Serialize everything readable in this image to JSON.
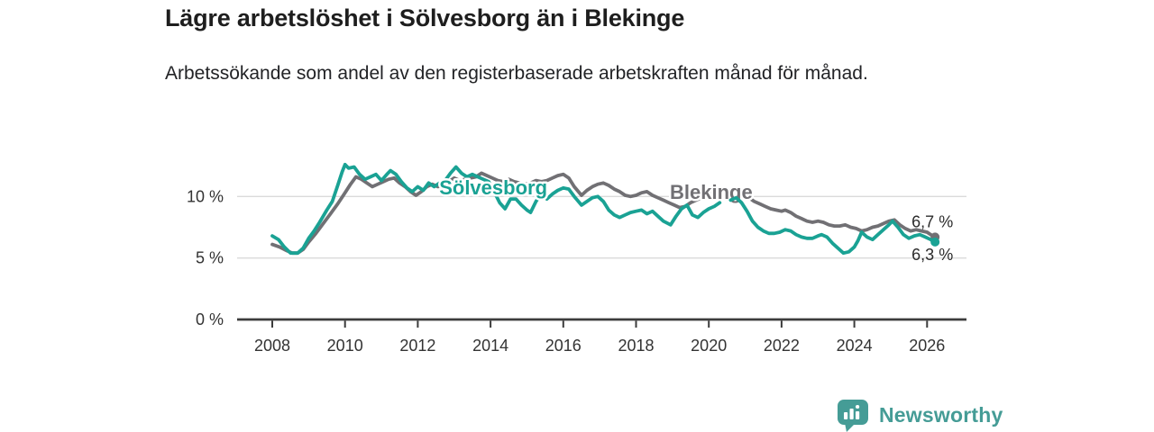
{
  "title": "Lägre arbetslöshet i Sölvesborg än i Blekinge",
  "subtitle": "Arbetssökande som andel av den registerbaserade arbetskraften månad för månad.",
  "branding": {
    "logo_text": "Newsworthy",
    "logo_color": "#459c96",
    "logo_icon": "bar-chart-bubble-icon"
  },
  "colors": {
    "solvesborg_teal": "#1aa294",
    "blekinge_gray": "#717074",
    "gridline": "#dadada",
    "axis": "#3c3c3c",
    "tick_text": "#333333",
    "value_label_text": "#2b2b2b",
    "background": "#ffffff"
  },
  "chart_data": {
    "type": "line",
    "title": "Lägre arbetslöshet i Sölvesborg än i Blekinge",
    "subtitle": "Arbetssökande som andel av den registerbaserade arbetskraften månad för månad.",
    "unit": "%",
    "x_axis": {
      "ticks": [
        2008,
        2010,
        2012,
        2014,
        2016,
        2018,
        2020,
        2022,
        2024,
        2026
      ],
      "range": [
        2007.0,
        2027.1
      ],
      "grid": false
    },
    "y_axis": {
      "ticks": [
        {
          "value": 0,
          "label": "0 %"
        },
        {
          "value": 5,
          "label": "5 %"
        },
        {
          "value": 10,
          "label": "10 %"
        }
      ],
      "range": [
        0,
        13.8
      ],
      "gridlines": [
        5,
        10
      ]
    },
    "data_break": {
      "from": 2020.38,
      "to": 2020.58
    },
    "legend_position": "inline-labels",
    "series": [
      {
        "name": "Blekinge",
        "color": "#717074",
        "end_value": 6.7,
        "end_label": "6,7 %",
        "label_pos": {
          "x": 2018.93,
          "y": 10.32
        },
        "segments": [
          [
            [
              2008.0,
              6.1
            ],
            [
              2008.2,
              5.9
            ],
            [
              2008.4,
              5.6
            ],
            [
              2008.55,
              5.4
            ],
            [
              2008.7,
              5.4
            ],
            [
              2008.85,
              5.7
            ],
            [
              2009.0,
              6.3
            ],
            [
              2009.2,
              7.0
            ],
            [
              2009.4,
              7.8
            ],
            [
              2009.6,
              8.6
            ],
            [
              2009.8,
              9.4
            ],
            [
              2010.0,
              10.3
            ],
            [
              2010.15,
              11.0
            ],
            [
              2010.3,
              11.6
            ],
            [
              2010.45,
              11.4
            ],
            [
              2010.6,
              11.1
            ],
            [
              2010.75,
              10.8
            ],
            [
              2010.9,
              11.0
            ],
            [
              2011.05,
              11.2
            ],
            [
              2011.2,
              11.4
            ],
            [
              2011.35,
              11.5
            ],
            [
              2011.5,
              11.1
            ],
            [
              2011.65,
              10.8
            ],
            [
              2011.8,
              10.4
            ],
            [
              2011.95,
              10.1
            ],
            [
              2012.1,
              10.4
            ],
            [
              2012.25,
              10.8
            ],
            [
              2012.4,
              11.0
            ],
            [
              2012.55,
              10.8
            ],
            [
              2012.7,
              10.9
            ],
            [
              2012.85,
              11.2
            ],
            [
              2013.0,
              11.5
            ],
            [
              2013.15,
              11.3
            ],
            [
              2013.3,
              11.4
            ],
            [
              2013.45,
              11.5
            ],
            [
              2013.6,
              11.6
            ],
            [
              2013.75,
              11.9
            ],
            [
              2013.9,
              11.7
            ],
            [
              2014.05,
              11.5
            ],
            [
              2014.2,
              11.3
            ],
            [
              2014.35,
              11.2
            ],
            [
              2014.5,
              11.4
            ],
            [
              2014.65,
              11.2
            ],
            [
              2014.8,
              11.1
            ],
            [
              2014.95,
              11.0
            ],
            [
              2015.1,
              11.1
            ],
            [
              2015.25,
              11.3
            ],
            [
              2015.4,
              11.2
            ],
            [
              2015.55,
              11.3
            ],
            [
              2015.7,
              11.5
            ],
            [
              2015.85,
              11.7
            ],
            [
              2016.0,
              11.8
            ],
            [
              2016.15,
              11.5
            ],
            [
              2016.3,
              10.8
            ],
            [
              2016.5,
              10.1
            ],
            [
              2016.65,
              10.5
            ],
            [
              2016.8,
              10.8
            ],
            [
              2016.95,
              11.0
            ],
            [
              2017.1,
              11.1
            ],
            [
              2017.25,
              10.9
            ],
            [
              2017.4,
              10.6
            ],
            [
              2017.55,
              10.4
            ],
            [
              2017.7,
              10.1
            ],
            [
              2017.85,
              10.0
            ],
            [
              2018.0,
              10.1
            ],
            [
              2018.15,
              10.3
            ],
            [
              2018.3,
              10.4
            ],
            [
              2018.45,
              10.1
            ],
            [
              2018.6,
              9.9
            ],
            [
              2018.75,
              9.7
            ],
            [
              2018.9,
              9.5
            ],
            [
              2019.05,
              9.3
            ],
            [
              2019.2,
              9.1
            ],
            [
              2019.35,
              9.2
            ],
            [
              2019.5,
              9.5
            ],
            [
              2019.65,
              9.7
            ],
            [
              2019.8,
              9.9
            ],
            [
              2019.95,
              10.1
            ],
            [
              2020.1,
              10.4
            ],
            [
              2020.3,
              10.6
            ]
          ],
          [
            [
              2020.6,
              10.5
            ],
            [
              2020.8,
              10.3
            ],
            [
              2020.95,
              10.1
            ],
            [
              2021.1,
              9.9
            ],
            [
              2021.25,
              9.6
            ],
            [
              2021.4,
              9.4
            ],
            [
              2021.55,
              9.2
            ],
            [
              2021.7,
              9.0
            ],
            [
              2021.85,
              8.9
            ],
            [
              2022.0,
              8.8
            ],
            [
              2022.1,
              8.9
            ],
            [
              2022.25,
              8.7
            ],
            [
              2022.4,
              8.4
            ],
            [
              2022.55,
              8.2
            ],
            [
              2022.7,
              8.0
            ],
            [
              2022.85,
              7.9
            ],
            [
              2023.0,
              8.0
            ],
            [
              2023.15,
              7.9
            ],
            [
              2023.3,
              7.7
            ],
            [
              2023.45,
              7.6
            ],
            [
              2023.6,
              7.6
            ],
            [
              2023.75,
              7.7
            ],
            [
              2023.9,
              7.5
            ],
            [
              2024.05,
              7.4
            ],
            [
              2024.2,
              7.2
            ],
            [
              2024.35,
              7.3
            ],
            [
              2024.5,
              7.5
            ],
            [
              2024.65,
              7.6
            ],
            [
              2024.8,
              7.8
            ],
            [
              2024.95,
              8.0
            ],
            [
              2025.1,
              8.1
            ],
            [
              2025.25,
              7.7
            ],
            [
              2025.4,
              7.4
            ],
            [
              2025.55,
              7.2
            ],
            [
              2025.7,
              7.3
            ],
            [
              2025.85,
              7.2
            ],
            [
              2026.0,
              7.1
            ],
            [
              2026.1,
              6.9
            ],
            [
              2026.22,
              6.7
            ]
          ]
        ]
      },
      {
        "name": "Sölvesborg",
        "color": "#1aa294",
        "end_value": 6.3,
        "end_label": "6,3 %",
        "label_pos": {
          "x": 2012.59,
          "y": 10.68
        },
        "segments": [
          [
            [
              2008.0,
              6.8
            ],
            [
              2008.17,
              6.5
            ],
            [
              2008.33,
              5.9
            ],
            [
              2008.5,
              5.4
            ],
            [
              2008.7,
              5.4
            ],
            [
              2008.85,
              5.8
            ],
            [
              2009.0,
              6.6
            ],
            [
              2009.15,
              7.2
            ],
            [
              2009.3,
              7.9
            ],
            [
              2009.5,
              8.9
            ],
            [
              2009.65,
              9.6
            ],
            [
              2009.8,
              10.9
            ],
            [
              2009.92,
              12.0
            ],
            [
              2010.0,
              12.6
            ],
            [
              2010.1,
              12.3
            ],
            [
              2010.25,
              12.4
            ],
            [
              2010.4,
              11.8
            ],
            [
              2010.55,
              11.4
            ],
            [
              2010.7,
              11.6
            ],
            [
              2010.85,
              11.8
            ],
            [
              2011.0,
              11.3
            ],
            [
              2011.15,
              11.8
            ],
            [
              2011.25,
              12.1
            ],
            [
              2011.4,
              11.8
            ],
            [
              2011.55,
              11.2
            ],
            [
              2011.7,
              10.7
            ],
            [
              2011.85,
              10.4
            ],
            [
              2012.0,
              10.8
            ],
            [
              2012.15,
              10.5
            ],
            [
              2012.3,
              11.1
            ],
            [
              2012.45,
              10.8
            ],
            [
              2012.6,
              11.1
            ],
            [
              2012.75,
              11.3
            ],
            [
              2012.9,
              11.9
            ],
            [
              2013.05,
              12.4
            ],
            [
              2013.2,
              11.9
            ],
            [
              2013.35,
              11.6
            ],
            [
              2013.5,
              11.8
            ],
            [
              2013.65,
              11.6
            ],
            [
              2013.8,
              11.4
            ],
            [
              2013.95,
              11.2
            ],
            [
              2014.1,
              10.4
            ],
            [
              2014.25,
              9.5
            ],
            [
              2014.4,
              9.0
            ],
            [
              2014.55,
              9.8
            ],
            [
              2014.7,
              9.8
            ],
            [
              2014.85,
              9.3
            ],
            [
              2015.0,
              8.9
            ],
            [
              2015.1,
              8.7
            ],
            [
              2015.25,
              9.6
            ],
            [
              2015.4,
              10.2
            ],
            [
              2015.55,
              9.8
            ],
            [
              2015.7,
              10.2
            ],
            [
              2015.85,
              10.5
            ],
            [
              2016.0,
              10.7
            ],
            [
              2016.15,
              10.6
            ],
            [
              2016.3,
              10.0
            ],
            [
              2016.5,
              9.3
            ],
            [
              2016.65,
              9.6
            ],
            [
              2016.8,
              9.9
            ],
            [
              2016.95,
              10.0
            ],
            [
              2017.1,
              9.6
            ],
            [
              2017.25,
              8.9
            ],
            [
              2017.4,
              8.5
            ],
            [
              2017.55,
              8.3
            ],
            [
              2017.7,
              8.5
            ],
            [
              2017.85,
              8.7
            ],
            [
              2018.0,
              8.8
            ],
            [
              2018.15,
              8.9
            ],
            [
              2018.3,
              8.6
            ],
            [
              2018.45,
              8.8
            ],
            [
              2018.6,
              8.4
            ],
            [
              2018.75,
              8.0
            ],
            [
              2018.95,
              7.7
            ],
            [
              2019.1,
              8.4
            ],
            [
              2019.25,
              9.0
            ],
            [
              2019.4,
              9.3
            ],
            [
              2019.55,
              8.5
            ],
            [
              2019.7,
              8.3
            ],
            [
              2019.85,
              8.7
            ],
            [
              2020.0,
              9.0
            ],
            [
              2020.15,
              9.2
            ],
            [
              2020.3,
              9.5
            ]
          ],
          [
            [
              2020.6,
              9.7
            ],
            [
              2020.75,
              9.9
            ],
            [
              2020.9,
              9.5
            ],
            [
              2021.05,
              8.8
            ],
            [
              2021.2,
              8.0
            ],
            [
              2021.35,
              7.5
            ],
            [
              2021.5,
              7.2
            ],
            [
              2021.65,
              7.0
            ],
            [
              2021.8,
              7.0
            ],
            [
              2021.95,
              7.1
            ],
            [
              2022.1,
              7.3
            ],
            [
              2022.25,
              7.2
            ],
            [
              2022.4,
              6.9
            ],
            [
              2022.55,
              6.7
            ],
            [
              2022.7,
              6.6
            ],
            [
              2022.85,
              6.6
            ],
            [
              2023.0,
              6.8
            ],
            [
              2023.1,
              6.9
            ],
            [
              2023.25,
              6.7
            ],
            [
              2023.4,
              6.2
            ],
            [
              2023.55,
              5.8
            ],
            [
              2023.7,
              5.4
            ],
            [
              2023.85,
              5.5
            ],
            [
              2024.0,
              5.9
            ],
            [
              2024.1,
              6.4
            ],
            [
              2024.2,
              7.1
            ],
            [
              2024.35,
              6.7
            ],
            [
              2024.5,
              6.5
            ],
            [
              2024.65,
              6.9
            ],
            [
              2024.8,
              7.3
            ],
            [
              2024.95,
              7.7
            ],
            [
              2025.05,
              8.0
            ],
            [
              2025.2,
              7.5
            ],
            [
              2025.35,
              6.9
            ],
            [
              2025.5,
              6.6
            ],
            [
              2025.65,
              6.8
            ],
            [
              2025.8,
              6.9
            ],
            [
              2025.95,
              6.7
            ],
            [
              2026.1,
              6.5
            ],
            [
              2026.22,
              6.3
            ]
          ]
        ]
      }
    ]
  }
}
